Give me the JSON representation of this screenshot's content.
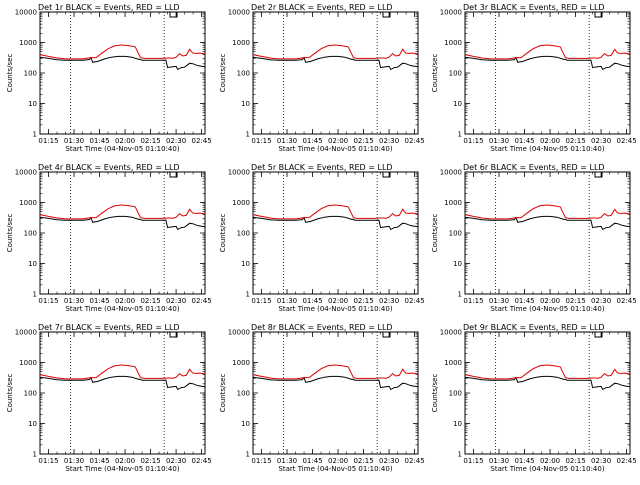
{
  "figure": {
    "background": "#ffffff"
  },
  "chart_data": [
    {
      "type": "line",
      "title": "Det 1r BLACK = Events, RED = LLD"
    },
    {
      "type": "line",
      "title": "Det 2r BLACK = Events, RED = LLD"
    },
    {
      "type": "line",
      "title": "Det 3r BLACK = Events, RED = LLD"
    },
    {
      "type": "line",
      "title": "Det 4r BLACK = Events, RED = LLD"
    },
    {
      "type": "line",
      "title": "Det 5r BLACK = Events, RED = LLD"
    },
    {
      "type": "line",
      "title": "Det 6r BLACK = Events, RED = LLD"
    },
    {
      "type": "line",
      "title": "Det 7r BLACK = Events, RED = LLD"
    },
    {
      "type": "line",
      "title": "Det 8r BLACK = Events, RED = LLD"
    },
    {
      "type": "line",
      "title": "Det 9r BLACK = Events, RED = LLD"
    }
  ],
  "shared": {
    "xlabel": "Start Time (04-Nov-05 01:10:40)",
    "ylabel": "Counts/sec",
    "yscale": "log",
    "ylim": [
      1,
      10000
    ],
    "y_ticks": [
      1,
      10,
      100,
      1000,
      10000
    ],
    "y_tick_labels": [
      "1",
      "10",
      "100",
      "1000",
      "10000"
    ],
    "xlim_minutes": [
      70,
      167
    ],
    "x_ticks_minutes": [
      75,
      90,
      105,
      120,
      135,
      150,
      165
    ],
    "x_tick_labels": [
      "01:15",
      "01:30",
      "01:45",
      "02:00",
      "02:15",
      "02:30",
      "02:45"
    ],
    "vlines_minutes": [
      88,
      143
    ],
    "vline_style": "dotted",
    "red_series": {
      "name": "LLD",
      "color": "#dd0000",
      "x": [
        70,
        75,
        80,
        85,
        90,
        95,
        100,
        103,
        106,
        110,
        114,
        118,
        122,
        126,
        129,
        131,
        133,
        137,
        141,
        145,
        147,
        148,
        150,
        152,
        154,
        156,
        158,
        159,
        160,
        162,
        164,
        167
      ],
      "values": [
        400,
        350,
        310,
        290,
        290,
        290,
        320,
        320,
        430,
        620,
        780,
        830,
        790,
        720,
        320,
        300,
        300,
        300,
        300,
        310,
        310,
        300,
        330,
        430,
        360,
        380,
        600,
        500,
        450,
        440,
        450,
        420
      ]
    },
    "black_series": {
      "name": "Events",
      "color": "#000000",
      "x": [
        70,
        75,
        80,
        85,
        90,
        95,
        99,
        100,
        101,
        104,
        108,
        112,
        116,
        120,
        124,
        128,
        129,
        130,
        133,
        137,
        141,
        144,
        145,
        146,
        148,
        150,
        151,
        153,
        155,
        158,
        160,
        162,
        164,
        167
      ],
      "values": [
        330,
        300,
        270,
        260,
        260,
        260,
        275,
        320,
        225,
        240,
        290,
        330,
        350,
        350,
        330,
        280,
        280,
        260,
        260,
        260,
        260,
        265,
        150,
        155,
        160,
        165,
        130,
        150,
        155,
        210,
        200,
        180,
        170,
        160
      ]
    }
  }
}
